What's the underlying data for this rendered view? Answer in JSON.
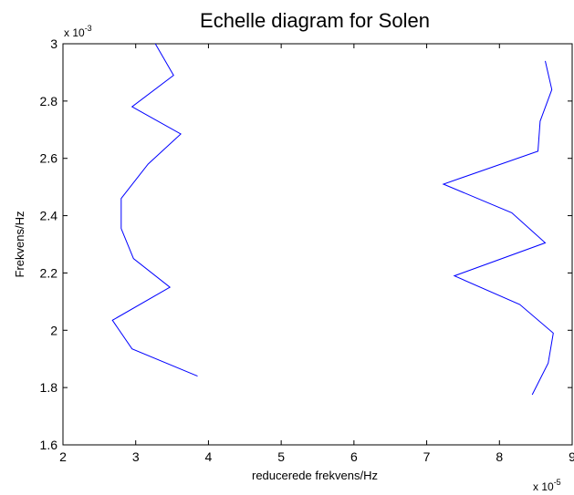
{
  "chart_data": {
    "type": "line",
    "title": "Echelle diagram for Solen",
    "xlabel": "reducerede frekvens/Hz",
    "ylabel": "Frekvens/Hz",
    "x_multiplier": {
      "base": "x 10",
      "exponent": "-5"
    },
    "y_multiplier": {
      "base": "x 10",
      "exponent": "-3"
    },
    "xlim": [
      2,
      9
    ],
    "ylim": [
      1.6,
      3.0
    ],
    "x_ticks": [
      "2",
      "3",
      "4",
      "5",
      "6",
      "7",
      "8",
      "9"
    ],
    "y_ticks": [
      "1.6",
      "1.8",
      "2",
      "2.2",
      "2.4",
      "2.6",
      "2.8",
      "3"
    ],
    "grid": false,
    "line_color": "#0000ff",
    "series": [
      {
        "x": [
          3.85,
          2.95,
          2.68,
          3.47,
          2.97,
          2.8,
          2.8,
          3.17,
          3.62,
          2.95,
          3.52,
          3.27
        ],
        "y": [
          1.84,
          1.935,
          2.035,
          2.15,
          2.25,
          2.355,
          2.46,
          2.58,
          2.685,
          2.78,
          2.89,
          3.0
        ]
      },
      {
        "x": [
          8.45,
          8.67,
          8.74,
          8.28,
          7.38,
          8.63,
          8.17,
          7.23,
          8.53,
          8.56,
          8.72,
          8.63
        ],
        "y": [
          1.775,
          1.885,
          1.99,
          2.09,
          2.19,
          2.305,
          2.41,
          2.51,
          2.625,
          2.73,
          2.84,
          2.94
        ]
      }
    ]
  }
}
